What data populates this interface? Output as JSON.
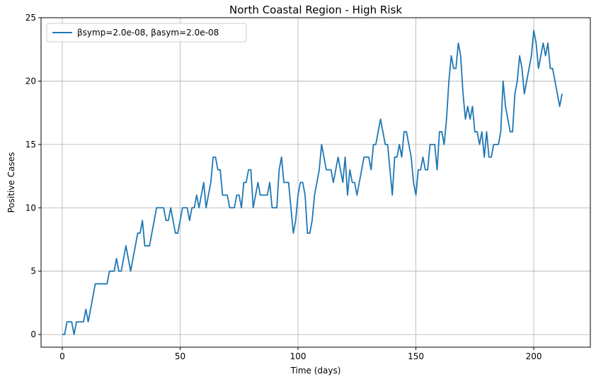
{
  "chart_data": {
    "type": "line",
    "title": "North Coastal Region - High Risk",
    "xlabel": "Time (days)",
    "ylabel": "Positive Cases",
    "xlim": [
      -9,
      224
    ],
    "ylim": [
      -1,
      25
    ],
    "xticks": [
      0,
      50,
      100,
      150,
      200
    ],
    "yticks": [
      0,
      5,
      10,
      15,
      20,
      25
    ],
    "grid": true,
    "legend_position": "upper-left",
    "series": [
      {
        "name": "βsymp=2.0e-08, βasym=2.0e-08",
        "color": "#1f77b4",
        "x": [
          0,
          1,
          2,
          3,
          4,
          5,
          6,
          7,
          8,
          9,
          10,
          11,
          12,
          13,
          14,
          15,
          16,
          17,
          18,
          19,
          20,
          21,
          22,
          23,
          24,
          25,
          26,
          27,
          28,
          29,
          30,
          31,
          32,
          33,
          34,
          35,
          36,
          37,
          38,
          39,
          40,
          41,
          42,
          43,
          44,
          45,
          46,
          47,
          48,
          49,
          50,
          51,
          52,
          53,
          54,
          55,
          56,
          57,
          58,
          59,
          60,
          61,
          62,
          63,
          64,
          65,
          66,
          67,
          68,
          69,
          70,
          71,
          72,
          73,
          74,
          75,
          76,
          77,
          78,
          79,
          80,
          81,
          82,
          83,
          84,
          85,
          86,
          87,
          88,
          89,
          90,
          91,
          92,
          93,
          94,
          95,
          96,
          97,
          98,
          99,
          100,
          101,
          102,
          103,
          104,
          105,
          106,
          107,
          108,
          109,
          110,
          111,
          112,
          113,
          114,
          115,
          116,
          117,
          118,
          119,
          120,
          121,
          122,
          123,
          124,
          125,
          126,
          127,
          128,
          129,
          130,
          131,
          132,
          133,
          134,
          135,
          136,
          137,
          138,
          139,
          140,
          141,
          142,
          143,
          144,
          145,
          146,
          147,
          148,
          149,
          150,
          151,
          152,
          153,
          154,
          155,
          156,
          157,
          158,
          159,
          160,
          161,
          162,
          163,
          164,
          165,
          166,
          167,
          168,
          169,
          170,
          171,
          172,
          173,
          174,
          175,
          176,
          177,
          178,
          179,
          180,
          181,
          182,
          183,
          184,
          185,
          186,
          187,
          188,
          189,
          190,
          191,
          192,
          193,
          194,
          195,
          196,
          197,
          198,
          199,
          200,
          201,
          202,
          203,
          204,
          205,
          206,
          207,
          208,
          209,
          210,
          211,
          212
        ],
        "y": [
          0,
          0,
          1,
          1,
          1,
          0,
          1,
          1,
          1,
          1,
          2,
          1,
          2,
          3,
          4,
          4,
          4,
          4,
          4,
          4,
          5,
          5,
          5,
          6,
          5,
          5,
          6,
          7,
          6,
          5,
          6,
          7,
          8,
          8,
          9,
          7,
          7,
          7,
          8,
          9,
          10,
          10,
          10,
          10,
          9,
          9,
          10,
          9,
          8,
          8,
          9,
          10,
          10,
          10,
          9,
          10,
          10,
          11,
          10,
          11,
          12,
          10,
          11,
          12,
          14,
          14,
          13,
          13,
          11,
          11,
          11,
          10,
          10,
          10,
          11,
          11,
          10,
          12,
          12,
          13,
          13,
          10,
          11,
          12,
          11,
          11,
          11,
          11,
          12,
          10,
          10,
          10,
          13,
          14,
          12,
          12,
          12,
          10,
          8,
          9,
          11,
          12,
          12,
          11,
          8,
          8,
          9,
          11,
          12,
          13,
          15,
          14,
          13,
          13,
          13,
          12,
          13,
          14,
          13,
          12,
          14,
          11,
          13,
          12,
          12,
          11,
          12,
          13,
          14,
          14,
          14,
          13,
          15,
          15,
          16,
          17,
          16,
          15,
          15,
          13,
          11,
          14,
          14,
          15,
          14,
          16,
          16,
          15,
          14,
          12,
          11,
          13,
          13,
          14,
          13,
          13,
          15,
          15,
          15,
          13,
          16,
          16,
          15,
          17,
          20,
          22,
          21,
          21,
          23,
          22,
          19,
          17,
          18,
          17,
          18,
          16,
          16,
          15,
          16,
          14,
          16,
          14,
          14,
          15,
          15,
          15,
          16,
          20,
          18,
          17,
          16,
          16,
          19,
          20,
          22,
          21,
          19,
          20,
          21,
          22,
          24,
          23,
          21,
          22,
          23,
          22,
          23,
          21,
          21,
          20,
          19,
          18,
          19
        ]
      }
    ]
  }
}
